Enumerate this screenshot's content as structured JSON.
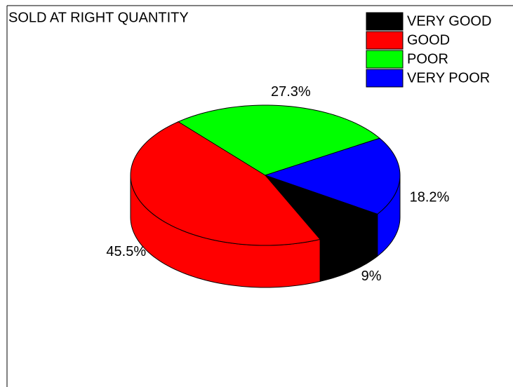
{
  "chart_data": {
    "type": "pie",
    "title": "SOLD AT RIGHT QUANTITY",
    "categories": [
      "VERY GOOD",
      "GOOD",
      "POOR",
      "VERY POOR"
    ],
    "values": [
      9,
      45.5,
      27.3,
      18.2
    ],
    "value_labels": [
      "9%",
      "45.5%",
      "27.3%",
      "18.2%"
    ],
    "colors": [
      "#000000",
      "#ff0000",
      "#00ff00",
      "#0000ff"
    ],
    "legend": "upper right"
  }
}
